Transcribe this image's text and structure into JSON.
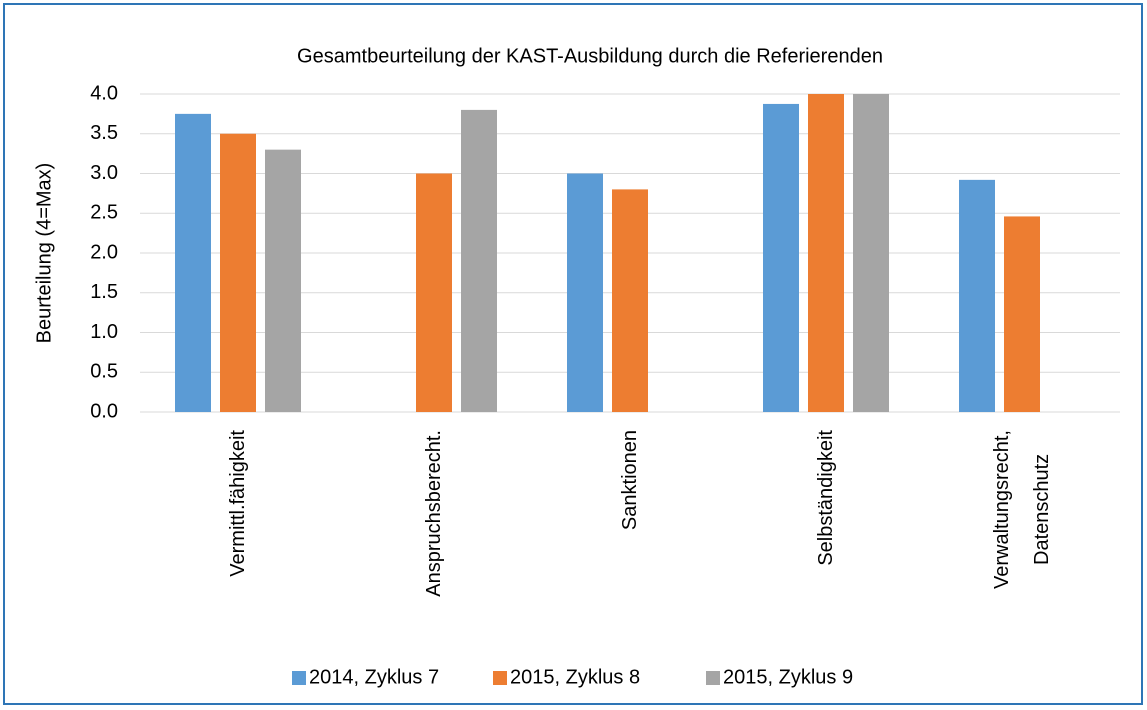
{
  "chart_data": {
    "type": "bar",
    "title": "Gesamtbeurteilung der KAST-Ausbildung  durch die Referierenden",
    "y_label": "Beurteilung  (4=Max)",
    "categories": [
      "Vermittl.fähigkeit",
      "Anspruchsberecht.",
      "Sanktionen",
      "Selbständigkeit",
      "Verwaltungsrecht,\nDatenschutz"
    ],
    "series": [
      {
        "name": "2014, Zyklus 7",
        "color": "#5b9bd5",
        "values": [
          3.75,
          null,
          3.0,
          3.875,
          2.92
        ]
      },
      {
        "name": "2015, Zyklus 8",
        "color": "#ed7d31",
        "values": [
          3.5,
          3.0,
          2.8,
          4.0,
          2.46
        ]
      },
      {
        "name": "2015, Zyklus 9",
        "color": "#a5a5a5",
        "values": [
          3.3,
          3.8,
          null,
          4.0,
          null
        ]
      }
    ],
    "ylim": [
      0,
      4
    ],
    "yticks": [
      {
        "value": 0,
        "label": "0.0"
      },
      {
        "value": 0.5,
        "label": "0.5"
      },
      {
        "value": 1,
        "label": "1.0"
      },
      {
        "value": 1.5,
        "label": "1.5"
      },
      {
        "value": 2,
        "label": "2.0"
      },
      {
        "value": 2.5,
        "label": "2.5"
      },
      {
        "value": 3,
        "label": "3.0"
      },
      {
        "value": 3.5,
        "label": "3.5"
      },
      {
        "value": 4,
        "label": "4.0"
      }
    ],
    "grid": true,
    "legend": "bottom"
  }
}
